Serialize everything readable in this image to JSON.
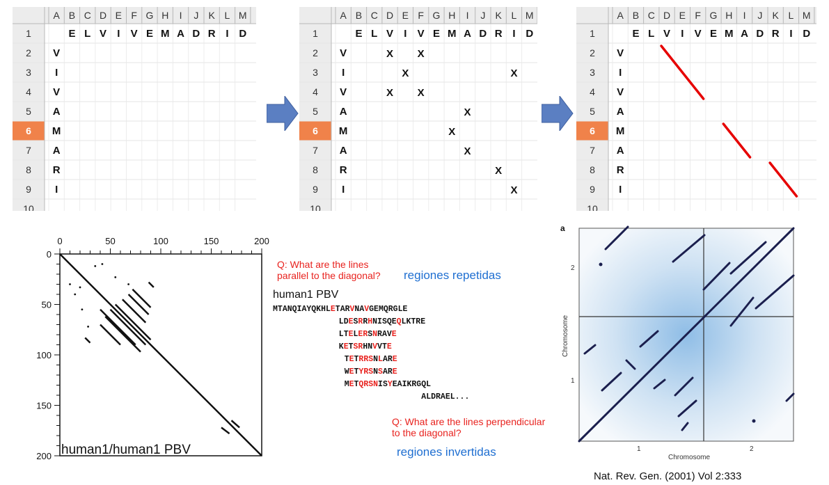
{
  "spreadsheet": {
    "col_headers": [
      "A",
      "B",
      "C",
      "D",
      "E",
      "F",
      "G",
      "H",
      "I",
      "J",
      "K",
      "L",
      "M"
    ],
    "row_headers": [
      "1",
      "2",
      "3",
      "4",
      "5",
      "6",
      "7",
      "8",
      "9",
      "10"
    ],
    "selected_row": "6",
    "top_sequence": [
      "E",
      "L",
      "V",
      "I",
      "V",
      "E",
      "M",
      "A",
      "D",
      "R",
      "I",
      "D"
    ],
    "side_sequence": [
      "V",
      "I",
      "V",
      "A",
      "M",
      "A",
      "R",
      "I"
    ]
  },
  "grids": [
    {
      "marks": []
    },
    {
      "marks": [
        {
          "row": 2,
          "col": "D",
          "text": "X"
        },
        {
          "row": 2,
          "col": "F",
          "text": "X"
        },
        {
          "row": 3,
          "col": "E",
          "text": "X"
        },
        {
          "row": 3,
          "col": "L",
          "text": "X"
        },
        {
          "row": 4,
          "col": "D",
          "text": "X"
        },
        {
          "row": 4,
          "col": "F",
          "text": "X"
        },
        {
          "row": 5,
          "col": "I",
          "text": "X"
        },
        {
          "row": 6,
          "col": "H",
          "text": "X"
        },
        {
          "row": 7,
          "col": "I",
          "text": "X"
        },
        {
          "row": 8,
          "col": "K",
          "text": "X"
        },
        {
          "row": 9,
          "col": "L",
          "text": "X"
        }
      ]
    },
    {
      "segments": [
        {
          "from": {
            "row": 2,
            "col": "D"
          },
          "to": {
            "row": 4,
            "col": "F"
          }
        },
        {
          "from": {
            "row": 6,
            "col": "H"
          },
          "to": {
            "row": 7,
            "col": "I"
          }
        },
        {
          "from": {
            "row": 8,
            "col": "K"
          },
          "to": {
            "row": 9,
            "col": "L"
          }
        }
      ]
    }
  ],
  "dotplot": {
    "x_ticks": [
      "0",
      "50",
      "100",
      "150",
      "200"
    ],
    "y_ticks": [
      "0",
      "50",
      "100",
      "150",
      "200"
    ],
    "label": "human1/human1 PBV",
    "range": [
      0,
      200
    ],
    "main_diagonal": {
      "from": [
        0,
        0
      ],
      "to": [
        200,
        200
      ]
    },
    "parallel_segments": [
      {
        "from": [
          40,
          55
        ],
        "to": [
          75,
          90
        ]
      },
      {
        "from": [
          45,
          62
        ],
        "to": [
          80,
          97
        ]
      },
      {
        "from": [
          40,
          70
        ],
        "to": [
          60,
          90
        ]
      },
      {
        "from": [
          50,
          55
        ],
        "to": [
          85,
          90
        ]
      },
      {
        "from": [
          55,
          50
        ],
        "to": [
          90,
          85
        ]
      },
      {
        "from": [
          62,
          45
        ],
        "to": [
          85,
          68
        ]
      },
      {
        "from": [
          68,
          40
        ],
        "to": [
          88,
          60
        ]
      },
      {
        "from": [
          72,
          35
        ],
        "to": [
          90,
          53
        ]
      },
      {
        "from": [
          25,
          83
        ],
        "to": [
          30,
          88
        ]
      },
      {
        "from": [
          170,
          165
        ],
        "to": [
          178,
          172
        ]
      },
      {
        "from": [
          160,
          172
        ],
        "to": [
          168,
          178
        ]
      },
      {
        "from": [
          88,
          28
        ],
        "to": [
          93,
          33
        ]
      }
    ],
    "dots": [
      [
        35,
        12
      ],
      [
        42,
        10
      ],
      [
        55,
        23
      ],
      [
        68,
        30
      ],
      [
        20,
        33
      ],
      [
        15,
        40
      ],
      [
        28,
        72
      ],
      [
        22,
        55
      ],
      [
        10,
        30
      ]
    ]
  },
  "question_parallel": {
    "line1": "Q: What are the lines",
    "line2": "parallel to the diagonal?"
  },
  "answer_parallel": "regiones repetidas",
  "sequence_block": {
    "title": "human1 PBV",
    "lines": [
      "MTANQIAYQKHLETARVNAVGEMQRGLE",
      "LDESRRHNISQEQLKTRE",
      "LTELERSNRAVE",
      "KETSRHNVVTE",
      "TETRRSNLARE",
      "WETYRSNSARE",
      "METQRSNISYEAIKRGQL",
      "ALDRAEL..."
    ],
    "highlight_color": "#e8231f",
    "highlight_letters": "E,R,N"
  },
  "question_perpendicular": {
    "line1": "Q: What are the lines perpendicular",
    "line2": "to the diagonal?"
  },
  "answer_perpendicular": "regiones invertidas",
  "chrom_plot": {
    "panel_label": "a",
    "ylabel": "Chromosome",
    "xlabel": "Chromosome",
    "x_ticks": [
      "1",
      "2"
    ],
    "y_ticks": [
      "1",
      "2"
    ]
  },
  "citation": "Nat. Rev. Gen. (2001) Vol 2:333",
  "colors": {
    "arrow": "#5b7fc2",
    "red_line": "#e60000",
    "header_bg": "#ececec",
    "selected_header": "#f0824a",
    "answer": "#1f6fd1",
    "question": "#e8231f",
    "navy": "#1b1f4e"
  }
}
